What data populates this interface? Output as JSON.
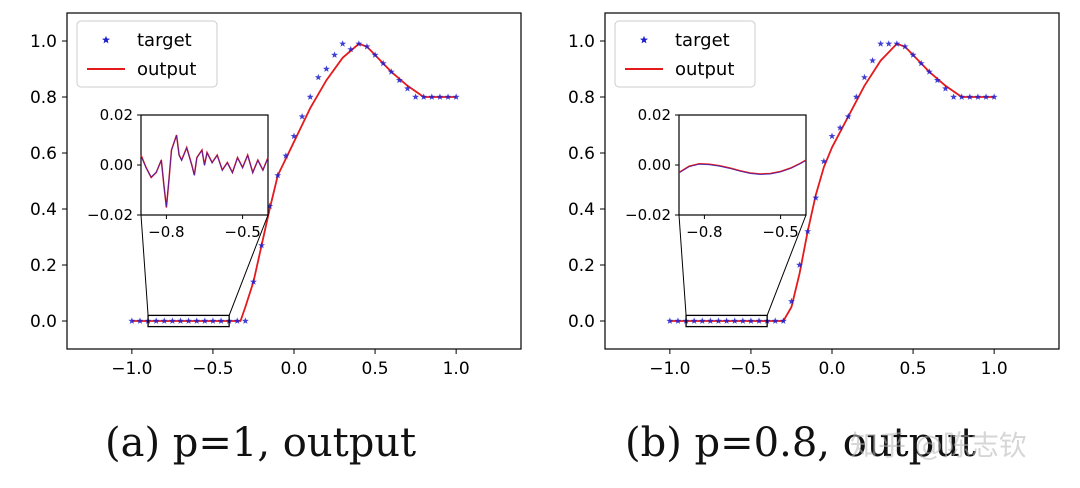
{
  "captions": [
    "(a) p=1, output",
    "(b) p=0.8, output"
  ],
  "watermark": "知乎 @陈志钦",
  "colors": {
    "target": "#1f1fd0",
    "output": "#e41a1c",
    "axis": "#000000",
    "zoom_box": "#000000"
  },
  "chart_data": [
    {
      "type": "line",
      "caption": "(a) p=1, output",
      "xlim": [
        -1.4,
        1.4
      ],
      "ylim": [
        -0.1,
        1.1
      ],
      "xticks": [
        -1.0,
        -0.5,
        0.0,
        0.5,
        1.0
      ],
      "xtick_labels": [
        "−1.0",
        "−0.5",
        "0.0",
        "0.5",
        "1.0"
      ],
      "yticks": [
        0.0,
        0.2,
        0.4,
        0.6,
        0.8,
        1.0
      ],
      "ytick_labels": [
        "0.0",
        "0.2",
        "0.4",
        "0.6",
        "0.8",
        "1.0"
      ],
      "legend": {
        "placement": "top-left",
        "entries": [
          "target",
          "output"
        ]
      },
      "series": [
        {
          "name": "target",
          "style": "star-markers",
          "color": "#1f1fd0",
          "x": [
            -1.0,
            -0.95,
            -0.9,
            -0.85,
            -0.8,
            -0.75,
            -0.7,
            -0.65,
            -0.6,
            -0.55,
            -0.5,
            -0.45,
            -0.4,
            -0.35,
            -0.3,
            -0.25,
            -0.2,
            -0.15,
            -0.1,
            -0.05,
            0.0,
            0.05,
            0.1,
            0.15,
            0.2,
            0.25,
            0.3,
            0.35,
            0.4,
            0.45,
            0.5,
            0.55,
            0.6,
            0.65,
            0.7,
            0.75,
            0.8,
            0.85,
            0.9,
            0.95,
            1.0
          ],
          "y": [
            0.0,
            0.0,
            0.0,
            0.0,
            0.0,
            0.0,
            0.0,
            0.0,
            0.0,
            0.0,
            0.0,
            0.0,
            0.0,
            0.0,
            0.0,
            0.14,
            0.27,
            0.41,
            0.52,
            0.59,
            0.66,
            0.73,
            0.8,
            0.87,
            0.9,
            0.95,
            0.99,
            0.97,
            0.99,
            0.98,
            0.95,
            0.92,
            0.89,
            0.86,
            0.83,
            0.8,
            0.8,
            0.8,
            0.8,
            0.8,
            0.8
          ]
        },
        {
          "name": "output",
          "style": "line",
          "color": "#e41a1c",
          "x": [
            -1.0,
            -0.5,
            -0.4,
            -0.33,
            -0.3,
            -0.25,
            -0.2,
            -0.15,
            -0.1,
            -0.05,
            0.0,
            0.1,
            0.2,
            0.3,
            0.4,
            0.45,
            0.5,
            0.6,
            0.7,
            0.8,
            1.0
          ],
          "y": [
            0.0,
            0.0,
            0.0,
            0.0,
            0.05,
            0.14,
            0.27,
            0.4,
            0.52,
            0.58,
            0.64,
            0.76,
            0.86,
            0.94,
            0.99,
            0.98,
            0.95,
            0.89,
            0.84,
            0.8,
            0.8
          ]
        }
      ],
      "inset": {
        "xlim": [
          -0.9,
          -0.4
        ],
        "ylim": [
          -0.02,
          0.02
        ],
        "xticks": [
          -0.8,
          -0.5
        ],
        "xtick_labels": [
          "−0.8",
          "−0.5"
        ],
        "yticks": [
          -0.02,
          0.0,
          0.02
        ],
        "ytick_labels": [
          "−0.02",
          "0.00",
          "0.02"
        ],
        "series": [
          {
            "name": "output",
            "color": "#e41a1c",
            "x": [
              -0.9,
              -0.88,
              -0.86,
              -0.84,
              -0.82,
              -0.81,
              -0.8,
              -0.79,
              -0.78,
              -0.76,
              -0.75,
              -0.74,
              -0.72,
              -0.7,
              -0.69,
              -0.68,
              -0.66,
              -0.65,
              -0.64,
              -0.62,
              -0.6,
              -0.58,
              -0.56,
              -0.54,
              -0.52,
              -0.5,
              -0.48,
              -0.46,
              -0.44,
              -0.42,
              -0.4
            ],
            "y": [
              0.004,
              -0.001,
              -0.005,
              -0.003,
              0.002,
              -0.008,
              -0.017,
              -0.006,
              0.006,
              0.012,
              0.004,
              0.002,
              0.007,
              0.0,
              -0.004,
              0.003,
              0.006,
              0.0,
              0.005,
              0.001,
              0.004,
              -0.002,
              0.001,
              -0.003,
              0.003,
              -0.001,
              0.004,
              -0.003,
              0.002,
              -0.002,
              0.003
            ]
          },
          {
            "name": "target",
            "color": "#1f1fd0",
            "x": [
              -0.9,
              -0.88,
              -0.86,
              -0.84,
              -0.82,
              -0.81,
              -0.8,
              -0.79,
              -0.78,
              -0.76,
              -0.75,
              -0.74,
              -0.72,
              -0.7,
              -0.69,
              -0.68,
              -0.66,
              -0.65,
              -0.64,
              -0.62,
              -0.6,
              -0.58,
              -0.56,
              -0.54,
              -0.52,
              -0.5,
              -0.48,
              -0.46,
              -0.44,
              -0.42,
              -0.4
            ],
            "y": [
              0.0035,
              -0.0012,
              -0.0048,
              -0.0028,
              0.0018,
              -0.0078,
              -0.0168,
              -0.0058,
              0.0058,
              0.0118,
              0.0038,
              0.0018,
              0.0068,
              -0.0002,
              -0.0042,
              0.0028,
              0.0058,
              -0.0002,
              0.0048,
              0.0008,
              0.0038,
              -0.0022,
              0.0008,
              -0.0032,
              0.0028,
              -0.0012,
              0.0038,
              -0.0032,
              0.0018,
              -0.0022,
              0.0028
            ]
          }
        ]
      },
      "zoom_box": {
        "x": [
          -0.9,
          -0.4
        ],
        "y": [
          -0.02,
          0.02
        ]
      }
    },
    {
      "type": "line",
      "caption": "(b) p=0.8, output",
      "xlim": [
        -1.4,
        1.4
      ],
      "ylim": [
        -0.1,
        1.1
      ],
      "xticks": [
        -1.0,
        -0.5,
        0.0,
        0.5,
        1.0
      ],
      "xtick_labels": [
        "−1.0",
        "−0.5",
        "0.0",
        "0.5",
        "1.0"
      ],
      "yticks": [
        0.0,
        0.2,
        0.4,
        0.6,
        0.8,
        1.0
      ],
      "ytick_labels": [
        "0.0",
        "0.2",
        "0.4",
        "0.6",
        "0.8",
        "1.0"
      ],
      "legend": {
        "placement": "top-left",
        "entries": [
          "target",
          "output"
        ]
      },
      "series": [
        {
          "name": "target",
          "style": "star-markers",
          "color": "#1f1fd0",
          "x": [
            -1.0,
            -0.95,
            -0.9,
            -0.85,
            -0.8,
            -0.75,
            -0.7,
            -0.65,
            -0.6,
            -0.55,
            -0.5,
            -0.45,
            -0.4,
            -0.35,
            -0.3,
            -0.25,
            -0.2,
            -0.15,
            -0.1,
            -0.05,
            0.0,
            0.05,
            0.1,
            0.15,
            0.2,
            0.25,
            0.3,
            0.35,
            0.4,
            0.45,
            0.5,
            0.55,
            0.6,
            0.65,
            0.7,
            0.75,
            0.8,
            0.85,
            0.9,
            0.95,
            1.0
          ],
          "y": [
            0.0,
            0.0,
            0.0,
            0.0,
            0.0,
            0.0,
            0.0,
            0.0,
            0.0,
            0.0,
            0.0,
            0.0,
            0.0,
            0.0,
            0.0,
            0.07,
            0.2,
            0.32,
            0.44,
            0.57,
            0.66,
            0.69,
            0.73,
            0.8,
            0.87,
            0.93,
            0.99,
            0.99,
            0.99,
            0.98,
            0.95,
            0.92,
            0.89,
            0.86,
            0.83,
            0.8,
            0.8,
            0.8,
            0.8,
            0.8,
            0.8
          ]
        },
        {
          "name": "output",
          "style": "line",
          "color": "#e41a1c",
          "x": [
            -1.0,
            -0.5,
            -0.4,
            -0.3,
            -0.25,
            -0.2,
            -0.15,
            -0.1,
            -0.05,
            0.0,
            0.1,
            0.2,
            0.3,
            0.4,
            0.45,
            0.5,
            0.6,
            0.7,
            0.8,
            1.0
          ],
          "y": [
            0.0,
            0.0,
            0.0,
            0.0,
            0.05,
            0.17,
            0.32,
            0.45,
            0.55,
            0.62,
            0.73,
            0.84,
            0.93,
            0.99,
            0.98,
            0.95,
            0.89,
            0.84,
            0.8,
            0.8
          ]
        }
      ],
      "inset": {
        "xlim": [
          -0.9,
          -0.4
        ],
        "ylim": [
          -0.02,
          0.02
        ],
        "xticks": [
          -0.8,
          -0.5
        ],
        "xtick_labels": [
          "−0.8",
          "−0.5"
        ],
        "yticks": [
          -0.02,
          0.0,
          0.02
        ],
        "ytick_labels": [
          "−0.02",
          "0.00",
          "0.02"
        ],
        "series": [
          {
            "name": "output",
            "color": "#e41a1c",
            "x": [
              -0.9,
              -0.86,
              -0.82,
              -0.78,
              -0.74,
              -0.7,
              -0.66,
              -0.62,
              -0.58,
              -0.54,
              -0.5,
              -0.46,
              -0.42,
              -0.4
            ],
            "y": [
              -0.003,
              -0.0005,
              0.0005,
              0.0003,
              -0.0003,
              -0.0012,
              -0.0023,
              -0.0032,
              -0.0036,
              -0.0034,
              -0.0026,
              -0.0012,
              0.0008,
              0.002
            ]
          },
          {
            "name": "target",
            "color": "#1f1fd0",
            "x": [
              -0.9,
              -0.86,
              -0.82,
              -0.78,
              -0.74,
              -0.7,
              -0.66,
              -0.62,
              -0.58,
              -0.54,
              -0.5,
              -0.46,
              -0.42,
              -0.4
            ],
            "y": [
              -0.0032,
              -0.0007,
              0.0003,
              0.0001,
              -0.0005,
              -0.0014,
              -0.0025,
              -0.0034,
              -0.0038,
              -0.0036,
              -0.0028,
              -0.0014,
              0.0006,
              0.0018
            ]
          }
        ]
      },
      "zoom_box": {
        "x": [
          -0.9,
          -0.4
        ],
        "y": [
          -0.02,
          0.02
        ]
      }
    }
  ]
}
